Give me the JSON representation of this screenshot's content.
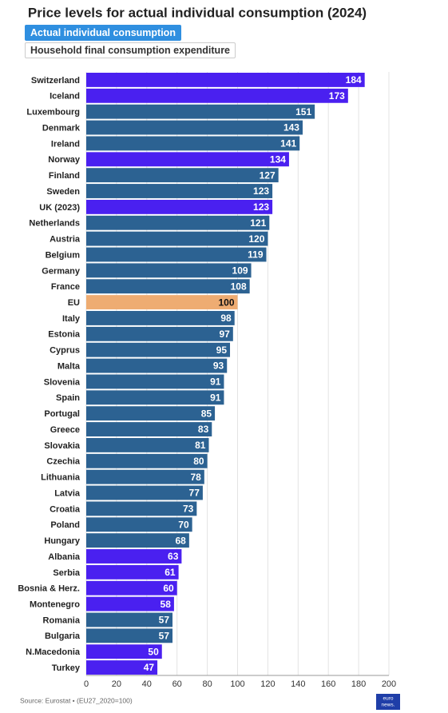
{
  "chart_data": {
    "type": "barh",
    "title": "Price levels for actual individual consumption (2024)",
    "buttons": [
      "Actual individual consumption",
      "Household final consumption expenditure"
    ],
    "categories": [
      "Switzerland",
      "Iceland",
      "Luxembourg",
      "Denmark",
      "Ireland",
      "Norway",
      "Finland",
      "Sweden",
      "UK (2023)",
      "Netherlands",
      "Austria",
      "Belgium",
      "Germany",
      "France",
      "EU",
      "Italy",
      "Estonia",
      "Cyprus",
      "Malta",
      "Slovenia",
      "Spain",
      "Portugal",
      "Greece",
      "Slovakia",
      "Czechia",
      "Lithuania",
      "Latvia",
      "Croatia",
      "Poland",
      "Hungary",
      "Albania",
      "Serbia",
      "Bosnia & Herz.",
      "Montenegro",
      "Romania",
      "Bulgaria",
      "N.Macedonia",
      "Turkey"
    ],
    "values": [
      184,
      173,
      151,
      143,
      141,
      134,
      127,
      123,
      123,
      121,
      120,
      119,
      109,
      108,
      100,
      98,
      97,
      95,
      93,
      91,
      91,
      85,
      83,
      81,
      80,
      78,
      77,
      73,
      70,
      68,
      63,
      61,
      60,
      58,
      57,
      57,
      50,
      47
    ],
    "colors": [
      "#4a20f0",
      "#4a20f0",
      "#2c6292",
      "#2c6292",
      "#2c6292",
      "#4a20f0",
      "#2c6292",
      "#2c6292",
      "#4a20f0",
      "#2c6292",
      "#2c6292",
      "#2c6292",
      "#2c6292",
      "#2c6292",
      "#eeac72",
      "#2c6292",
      "#2c6292",
      "#2c6292",
      "#2c6292",
      "#2c6292",
      "#2c6292",
      "#2c6292",
      "#2c6292",
      "#2c6292",
      "#2c6292",
      "#2c6292",
      "#2c6292",
      "#2c6292",
      "#2c6292",
      "#2c6292",
      "#4a20f0",
      "#4a20f0",
      "#4a20f0",
      "#4a20f0",
      "#2c6292",
      "#2c6292",
      "#4a20f0",
      "#4a20f0"
    ],
    "xlim": [
      0,
      200
    ],
    "xticks": [
      0,
      20,
      40,
      60,
      80,
      100,
      120,
      140,
      160,
      180,
      200
    ],
    "grid": true,
    "source": "Source: Eurostat • (EU27_2020=100)",
    "logo": [
      "euro",
      "news."
    ]
  }
}
